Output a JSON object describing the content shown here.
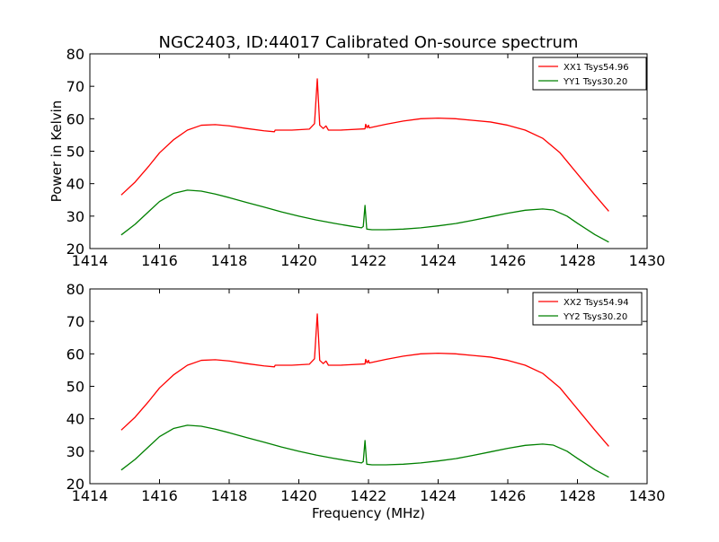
{
  "title": "NGC2403, ID:44017 Calibrated On-source spectrum",
  "colors": {
    "xx": "#ff0000",
    "yy": "#008000",
    "axis": "#000000",
    "background": "#ffffff"
  },
  "chart_data": [
    {
      "type": "line",
      "title": "NGC2403, ID:44017 Calibrated On-source spectrum",
      "xlabel": "",
      "ylabel": "Power in Kelvin",
      "xlim": [
        1414,
        1430
      ],
      "ylim": [
        20,
        80
      ],
      "xticks": [
        1414,
        1416,
        1418,
        1420,
        1422,
        1424,
        1426,
        1428,
        1430
      ],
      "yticks": [
        20,
        30,
        40,
        50,
        60,
        70,
        80
      ],
      "legend_position": "top-right",
      "grid": false,
      "series": [
        {
          "name": "XX1 Tsys54.96",
          "color": "#ff0000",
          "points": [
            [
              1414.9,
              36.5
            ],
            [
              1415.3,
              40.5
            ],
            [
              1415.7,
              45.5
            ],
            [
              1416.0,
              49.5
            ],
            [
              1416.4,
              53.5
            ],
            [
              1416.8,
              56.5
            ],
            [
              1417.2,
              58.0
            ],
            [
              1417.6,
              58.2
            ],
            [
              1418.0,
              57.8
            ],
            [
              1418.5,
              57.0
            ],
            [
              1419.0,
              56.3
            ],
            [
              1419.3,
              56.0
            ],
            [
              1419.32,
              56.5
            ],
            [
              1419.8,
              56.5
            ],
            [
              1420.3,
              56.8
            ],
            [
              1420.45,
              58.5
            ],
            [
              1420.53,
              72.3
            ],
            [
              1420.6,
              58.0
            ],
            [
              1420.7,
              57.0
            ],
            [
              1420.78,
              57.8
            ],
            [
              1420.85,
              56.5
            ],
            [
              1421.2,
              56.5
            ],
            [
              1421.9,
              56.9
            ],
            [
              1421.92,
              58.3
            ],
            [
              1421.96,
              57.2
            ],
            [
              1422.0,
              58.0
            ],
            [
              1422.02,
              57.2
            ],
            [
              1422.5,
              58.3
            ],
            [
              1423.0,
              59.3
            ],
            [
              1423.5,
              60.0
            ],
            [
              1424.0,
              60.2
            ],
            [
              1424.5,
              60.0
            ],
            [
              1425.0,
              59.5
            ],
            [
              1425.5,
              59.0
            ],
            [
              1426.0,
              58.0
            ],
            [
              1426.5,
              56.5
            ],
            [
              1427.0,
              54.0
            ],
            [
              1427.5,
              49.5
            ],
            [
              1428.0,
              43.0
            ],
            [
              1428.5,
              36.5
            ],
            [
              1428.9,
              31.5
            ]
          ]
        },
        {
          "name": "YY1 Tsys30.20",
          "color": "#008000",
          "points": [
            [
              1414.9,
              24.2
            ],
            [
              1415.3,
              27.5
            ],
            [
              1415.7,
              31.5
            ],
            [
              1416.0,
              34.5
            ],
            [
              1416.4,
              37.0
            ],
            [
              1416.8,
              38.0
            ],
            [
              1417.2,
              37.7
            ],
            [
              1417.6,
              36.8
            ],
            [
              1418.0,
              35.7
            ],
            [
              1418.5,
              34.2
            ],
            [
              1419.0,
              32.8
            ],
            [
              1419.5,
              31.3
            ],
            [
              1420.0,
              30.0
            ],
            [
              1420.5,
              28.8
            ],
            [
              1421.0,
              27.8
            ],
            [
              1421.5,
              26.9
            ],
            [
              1421.8,
              26.4
            ],
            [
              1421.85,
              26.8
            ],
            [
              1421.9,
              33.3
            ],
            [
              1421.95,
              26.0
            ],
            [
              1422.1,
              25.8
            ],
            [
              1422.5,
              25.8
            ],
            [
              1423.0,
              26.0
            ],
            [
              1423.5,
              26.4
            ],
            [
              1424.0,
              27.0
            ],
            [
              1424.5,
              27.7
            ],
            [
              1425.0,
              28.7
            ],
            [
              1425.5,
              29.8
            ],
            [
              1426.0,
              30.9
            ],
            [
              1426.5,
              31.8
            ],
            [
              1427.0,
              32.2
            ],
            [
              1427.3,
              31.9
            ],
            [
              1427.7,
              30.0
            ],
            [
              1428.0,
              27.8
            ],
            [
              1428.5,
              24.3
            ],
            [
              1428.9,
              22.0
            ]
          ]
        }
      ]
    },
    {
      "type": "line",
      "title": "",
      "xlabel": "Frequency (MHz)",
      "ylabel": "",
      "xlim": [
        1414,
        1430
      ],
      "ylim": [
        20,
        80
      ],
      "xticks": [
        1414,
        1416,
        1418,
        1420,
        1422,
        1424,
        1426,
        1428,
        1430
      ],
      "yticks": [
        20,
        30,
        40,
        50,
        60,
        70,
        80
      ],
      "legend_position": "top-right",
      "grid": false,
      "series": [
        {
          "name": "XX2 Tsys54.94",
          "color": "#ff0000",
          "points": [
            [
              1414.9,
              36.5
            ],
            [
              1415.3,
              40.5
            ],
            [
              1415.7,
              45.5
            ],
            [
              1416.0,
              49.5
            ],
            [
              1416.4,
              53.5
            ],
            [
              1416.8,
              56.5
            ],
            [
              1417.2,
              58.0
            ],
            [
              1417.6,
              58.2
            ],
            [
              1418.0,
              57.8
            ],
            [
              1418.5,
              57.0
            ],
            [
              1419.0,
              56.3
            ],
            [
              1419.3,
              56.0
            ],
            [
              1419.32,
              56.5
            ],
            [
              1419.8,
              56.5
            ],
            [
              1420.3,
              56.8
            ],
            [
              1420.45,
              58.5
            ],
            [
              1420.53,
              72.3
            ],
            [
              1420.6,
              58.0
            ],
            [
              1420.7,
              57.0
            ],
            [
              1420.78,
              57.8
            ],
            [
              1420.85,
              56.5
            ],
            [
              1421.2,
              56.5
            ],
            [
              1421.9,
              56.9
            ],
            [
              1421.92,
              58.3
            ],
            [
              1421.96,
              57.2
            ],
            [
              1422.0,
              58.0
            ],
            [
              1422.02,
              57.2
            ],
            [
              1422.5,
              58.3
            ],
            [
              1423.0,
              59.3
            ],
            [
              1423.5,
              60.0
            ],
            [
              1424.0,
              60.2
            ],
            [
              1424.5,
              60.0
            ],
            [
              1425.0,
              59.5
            ],
            [
              1425.5,
              59.0
            ],
            [
              1426.0,
              58.0
            ],
            [
              1426.5,
              56.5
            ],
            [
              1427.0,
              54.0
            ],
            [
              1427.5,
              49.5
            ],
            [
              1428.0,
              43.0
            ],
            [
              1428.5,
              36.5
            ],
            [
              1428.9,
              31.5
            ]
          ]
        },
        {
          "name": "YY2 Tsys30.20",
          "color": "#008000",
          "points": [
            [
              1414.9,
              24.2
            ],
            [
              1415.3,
              27.5
            ],
            [
              1415.7,
              31.5
            ],
            [
              1416.0,
              34.5
            ],
            [
              1416.4,
              37.0
            ],
            [
              1416.8,
              38.0
            ],
            [
              1417.2,
              37.7
            ],
            [
              1417.6,
              36.8
            ],
            [
              1418.0,
              35.7
            ],
            [
              1418.5,
              34.2
            ],
            [
              1419.0,
              32.8
            ],
            [
              1419.5,
              31.3
            ],
            [
              1420.0,
              30.0
            ],
            [
              1420.5,
              28.8
            ],
            [
              1421.0,
              27.8
            ],
            [
              1421.5,
              26.9
            ],
            [
              1421.8,
              26.4
            ],
            [
              1421.85,
              26.8
            ],
            [
              1421.9,
              33.3
            ],
            [
              1421.95,
              26.0
            ],
            [
              1422.1,
              25.8
            ],
            [
              1422.5,
              25.8
            ],
            [
              1423.0,
              26.0
            ],
            [
              1423.5,
              26.4
            ],
            [
              1424.0,
              27.0
            ],
            [
              1424.5,
              27.7
            ],
            [
              1425.0,
              28.7
            ],
            [
              1425.5,
              29.8
            ],
            [
              1426.0,
              30.9
            ],
            [
              1426.5,
              31.8
            ],
            [
              1427.0,
              32.2
            ],
            [
              1427.3,
              31.9
            ],
            [
              1427.7,
              30.0
            ],
            [
              1428.0,
              27.8
            ],
            [
              1428.5,
              24.3
            ],
            [
              1428.9,
              22.0
            ]
          ]
        }
      ]
    }
  ]
}
